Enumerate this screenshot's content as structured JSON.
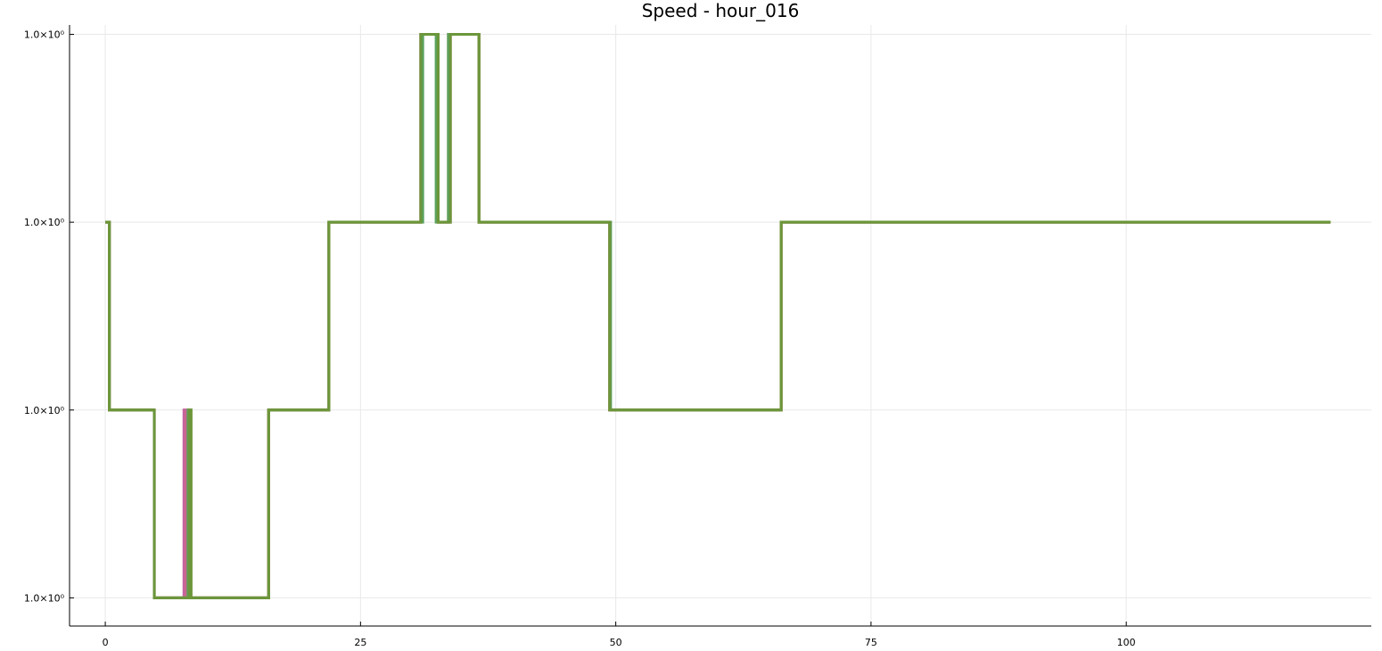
{
  "chart_data": {
    "type": "line",
    "title": "Speed - hour_016",
    "xlabel": "",
    "ylabel": "",
    "xlim": [
      -3.5,
      124
    ],
    "ylim": [
      -0.15,
      3.05
    ],
    "x_ticks": [
      0,
      25,
      50,
      75,
      100
    ],
    "y_ticks": [
      {
        "level": 0,
        "label": "1.0×10⁰"
      },
      {
        "level": 1,
        "label": "1.0×10⁰"
      },
      {
        "level": 2,
        "label": "1.0×10⁰"
      },
      {
        "level": 3,
        "label": "1.0×10⁰"
      }
    ],
    "grid": true,
    "legend": "none",
    "series": [
      {
        "color": "#e26f46",
        "x": [
          0,
          0.4,
          0.4,
          4.8,
          4.8,
          7.8,
          7.8,
          8.1,
          8.1,
          16.0,
          16.0,
          21.9,
          21.9,
          30.9,
          30.9,
          32.6,
          32.6,
          33.6,
          33.6,
          36.6,
          36.6,
          49.4,
          49.4,
          66.2,
          66.2,
          120
        ],
        "y": [
          2,
          2,
          1,
          1,
          0,
          0,
          1,
          1,
          0,
          0,
          1,
          1,
          2,
          2,
          3,
          3,
          2,
          2,
          3,
          3,
          2,
          2,
          1,
          1,
          2,
          2
        ]
      },
      {
        "color": "#c5649f",
        "x": [
          0,
          0.4,
          0.4,
          4.8,
          4.8,
          7.7,
          7.7,
          8.0,
          8.0,
          16.0,
          16.0,
          21.9,
          21.9,
          30.9,
          30.9,
          32.6,
          32.6,
          33.8,
          33.8,
          36.6,
          36.6,
          49.4,
          49.4,
          66.2,
          66.2,
          120
        ],
        "y": [
          2,
          2,
          1,
          1,
          0,
          0,
          1,
          1,
          0,
          0,
          1,
          1,
          2,
          2,
          3,
          3,
          2,
          2,
          3,
          3,
          2,
          2,
          1,
          1,
          2,
          2
        ]
      },
      {
        "color": "#5aa462",
        "x": [
          0,
          0.4,
          0.4,
          4.8,
          4.8,
          8.1,
          8.1,
          8.3,
          8.3,
          16.0,
          16.0,
          21.9,
          21.9,
          31.1,
          31.1,
          32.4,
          32.4,
          33.6,
          33.6,
          36.6,
          36.6,
          49.5,
          49.5,
          66.2,
          66.2,
          120
        ],
        "y": [
          2,
          2,
          1,
          1,
          0,
          0,
          1,
          1,
          0,
          0,
          1,
          1,
          2,
          2,
          3,
          3,
          2,
          2,
          3,
          3,
          2,
          2,
          1,
          1,
          2,
          2
        ]
      },
      {
        "color": "#8a8a32",
        "x": [
          0,
          0.4,
          0.4,
          4.8,
          4.8,
          8.2,
          8.2,
          8.4,
          8.4,
          16.0,
          16.0,
          21.9,
          21.9,
          30.9,
          30.9,
          32.6,
          32.6,
          33.8,
          33.8,
          36.6,
          36.6,
          49.4,
          49.4,
          66.2,
          66.2,
          120
        ],
        "y": [
          2,
          2,
          1,
          1,
          0,
          0,
          1,
          1,
          0,
          0,
          1,
          1,
          2,
          2,
          3,
          3,
          2,
          2,
          3,
          3,
          2,
          2,
          1,
          1,
          2,
          2
        ]
      },
      {
        "color": "#6b963a",
        "x": [
          0,
          0.4,
          0.4,
          4.8,
          4.8,
          8.2,
          8.2,
          8.4,
          8.4,
          16.0,
          16.0,
          21.9,
          21.9,
          30.9,
          30.9,
          32.6,
          32.6,
          33.8,
          33.8,
          36.6,
          36.6,
          49.4,
          49.4,
          66.2,
          66.2,
          120
        ],
        "y": [
          2,
          2,
          1,
          1,
          0,
          0,
          1,
          1,
          0,
          0,
          1,
          1,
          2,
          2,
          3,
          3,
          2,
          2,
          3,
          3,
          2,
          2,
          1,
          1,
          2,
          2
        ]
      }
    ]
  }
}
